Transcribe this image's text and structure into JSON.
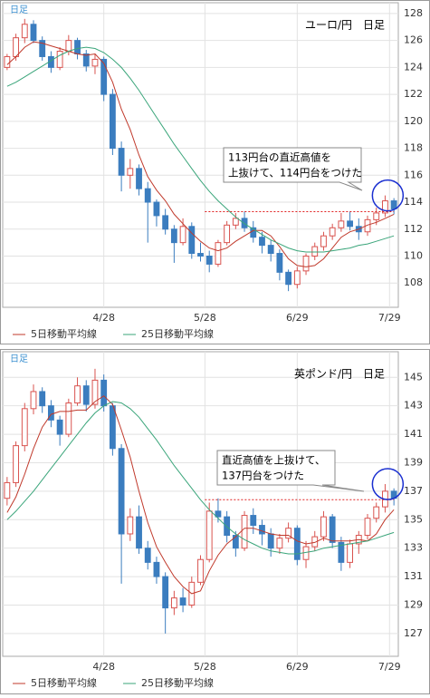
{
  "chart_data": [
    {
      "type": "candlestick",
      "badge": "日足",
      "title": "ユーロ/円　日足",
      "annotation": [
        "113円台の直近高値を",
        "上抜けて、114円台をつけた"
      ],
      "resistance": 113.3,
      "open": [
        124,
        124.8,
        126.2,
        127.2,
        126,
        124.8,
        124,
        125.2,
        126,
        125,
        124.1,
        124.6,
        122,
        118,
        116,
        116.5,
        115,
        114,
        113,
        112,
        111,
        112.2,
        110.2,
        110,
        109.4,
        111,
        112.3,
        112.8,
        112.1,
        111.4,
        110.8,
        110.2,
        108.8,
        107.9,
        108.9,
        110,
        110.7,
        111.5,
        112.1,
        112.6,
        112.2,
        111.8,
        112.7,
        113.2,
        114.1
      ],
      "high": [
        125,
        126.5,
        127.6,
        127.5,
        126.3,
        125.2,
        125.5,
        126.4,
        126.2,
        125.3,
        125,
        124.8,
        122.4,
        118.5,
        117.2,
        116.8,
        115.5,
        114.2,
        113.5,
        112.3,
        112.8,
        112.5,
        111,
        110.4,
        111.2,
        112.6,
        113.2,
        113.3,
        112.6,
        111.8,
        111.2,
        110.5,
        109,
        109.2,
        110.2,
        111,
        111.8,
        112.4,
        113.2,
        113.3,
        112.8,
        113,
        113.6,
        114.5,
        114.3
      ],
      "low": [
        123.8,
        124.5,
        125.8,
        125.8,
        124.5,
        123.6,
        123.8,
        124.9,
        124.6,
        123.7,
        123.5,
        121.5,
        117.5,
        114.8,
        115,
        114.5,
        111,
        112.2,
        111.6,
        109.5,
        110.8,
        109.8,
        109.6,
        108.8,
        109.2,
        110.8,
        112,
        111.8,
        111,
        110.2,
        109.6,
        108.2,
        107.4,
        107.6,
        108.6,
        109.7,
        110.4,
        111.2,
        111.8,
        111.9,
        111.2,
        111.5,
        112.3,
        112.9,
        113.1
      ],
      "close": [
        124.8,
        126.2,
        127.2,
        126,
        124.8,
        124,
        125.2,
        126,
        125,
        124.1,
        124.6,
        122,
        118,
        116,
        116.5,
        115,
        114,
        113,
        112,
        111,
        112.2,
        110.2,
        110,
        109.4,
        111,
        112.3,
        112.8,
        112.1,
        111.4,
        110.8,
        110.2,
        108.8,
        107.9,
        108.9,
        110,
        110.7,
        111.5,
        112.1,
        112.6,
        112.2,
        111.8,
        112.7,
        113.2,
        114.1,
        113.5
      ],
      "up_color": "#d9534f",
      "down_color": "#3b7dbf",
      "series": [
        {
          "name": "5日移動平均線",
          "color": "#c0392b",
          "values": [
            124.2,
            124.8,
            125.5,
            125.9,
            125.8,
            125.6,
            125.4,
            125.2,
            125,
            124.9,
            125,
            124.3,
            122.9,
            120.9,
            119.4,
            117.5,
            115.9,
            114.9,
            114.1,
            113.1,
            112.4,
            111.7,
            111.1,
            110.6,
            110.4,
            110.6,
            111.1,
            111.5,
            111.9,
            111.9,
            111.5,
            110.7,
            109.8,
            109.3,
            109.2,
            109.3,
            109.8,
            110.6,
            111.4,
            111.8,
            112,
            112.3,
            112.5,
            112.8,
            113.1
          ]
        },
        {
          "name": "25日移動平均線",
          "color": "#3aa57a",
          "values": [
            122.6,
            122.9,
            123.3,
            123.7,
            124.1,
            124.5,
            124.9,
            125.2,
            125.4,
            125.5,
            125.4,
            125.1,
            124.6,
            124,
            123.2,
            122.3,
            121.3,
            120.3,
            119.3,
            118.3,
            117.4,
            116.5,
            115.6,
            114.8,
            114.1,
            113.5,
            112.9,
            112.4,
            112,
            111.6,
            111.2,
            110.9,
            110.6,
            110.4,
            110.3,
            110.3,
            110.3,
            110.4,
            110.5,
            110.6,
            110.8,
            110.9,
            111.1,
            111.3,
            111.5
          ]
        }
      ],
      "xlim": [
        -0.5,
        44.5
      ],
      "xticks": [
        {
          "value": 11,
          "label": "4/28"
        },
        {
          "value": 22.5,
          "label": "5/28"
        },
        {
          "value": 33,
          "label": "6/29"
        },
        {
          "value": 43.5,
          "label": "7/29"
        }
      ],
      "ylim": [
        106.2,
        128.8
      ],
      "yticks": [
        108,
        110,
        112,
        114,
        116,
        118,
        120,
        122,
        124,
        126,
        128
      ],
      "grid": true
    },
    {
      "type": "candlestick",
      "badge": "日足",
      "title": "英ポンド/円　日足",
      "annotation": [
        "直近高値を上抜けて、",
        "137円台をつけた"
      ],
      "resistance": 136.4,
      "open": [
        136.5,
        137.6,
        140.2,
        142.8,
        144,
        143,
        142,
        141,
        143.2,
        144.4,
        143.1,
        144.8,
        143,
        140,
        134,
        135.2,
        133,
        132,
        131,
        128.8,
        129.5,
        129,
        130.6,
        132.2,
        135.6,
        135.2,
        133.9,
        133,
        135.3,
        134.6,
        134,
        133,
        133.7,
        134.4,
        132.2,
        133.1,
        133.8,
        135.2,
        133.4,
        132,
        133.3,
        133.9,
        135.1,
        135.9,
        137
      ],
      "high": [
        138,
        140.5,
        143.2,
        144.5,
        144.3,
        143.4,
        142.3,
        143.5,
        145,
        144.8,
        145.6,
        145.2,
        143.2,
        140.3,
        135.8,
        136,
        133.5,
        132.4,
        131.3,
        130,
        130.2,
        131,
        132.5,
        136.2,
        136.5,
        135.6,
        134.2,
        135.6,
        135.8,
        135,
        134.4,
        134,
        134.8,
        134.6,
        133.5,
        134.2,
        135.6,
        135.4,
        133.8,
        133.6,
        134.2,
        135.4,
        136.2,
        137.5,
        137.2
      ],
      "low": [
        136,
        137.3,
        139.8,
        142.4,
        142.5,
        141.5,
        140.2,
        140.8,
        143,
        142.6,
        142.8,
        142.6,
        139.5,
        130.5,
        133.5,
        132.6,
        131.5,
        130.5,
        127,
        128.3,
        128.5,
        128.8,
        130.4,
        132,
        134.8,
        133.4,
        132.4,
        132.8,
        134,
        133.2,
        132.4,
        132.6,
        133.4,
        131.8,
        131.6,
        132.8,
        133.5,
        133,
        131.4,
        131.6,
        132.6,
        133.6,
        134.8,
        135.5,
        136
      ],
      "close": [
        137.6,
        140.2,
        142.8,
        144,
        143,
        142,
        141,
        143.2,
        144.4,
        143.1,
        144.8,
        143,
        140,
        134,
        135.2,
        133,
        132,
        131,
        128.8,
        129.5,
        129,
        130.6,
        132.2,
        135.6,
        135.2,
        133.9,
        133,
        135.3,
        134.6,
        134,
        133,
        133.7,
        134.4,
        132.2,
        133.1,
        133.8,
        135.2,
        133.4,
        132,
        133.3,
        133.9,
        135.1,
        135.9,
        137,
        136.5
      ],
      "up_color": "#d9534f",
      "down_color": "#3b7dbf",
      "series": [
        {
          "name": "5日移動平均線",
          "color": "#c0392b",
          "values": [
            135.5,
            136.6,
            138.2,
            140,
            141.5,
            142.4,
            142.6,
            142.6,
            142.7,
            142.7,
            143.3,
            143.7,
            143.1,
            141.3,
            139.4,
            137,
            134.8,
            133.1,
            132,
            131,
            130.3,
            129.8,
            130,
            131.4,
            132.5,
            133.3,
            133.8,
            134.4,
            134.4,
            134.2,
            134,
            133.9,
            133.9,
            133.5,
            133.3,
            133.4,
            133.7,
            133.5,
            133.5,
            133.5,
            133.6,
            133.5,
            134,
            135,
            135.7
          ]
        },
        {
          "name": "25日移動平均線",
          "color": "#3aa57a",
          "values": [
            135,
            135.6,
            136.3,
            137,
            137.8,
            138.6,
            139.4,
            140.2,
            141,
            141.8,
            142.5,
            143,
            143.3,
            143.2,
            142.8,
            142.2,
            141.4,
            140.6,
            139.7,
            138.8,
            138,
            137.2,
            136.4,
            135.7,
            135.1,
            134.5,
            134,
            133.6,
            133.3,
            133,
            132.8,
            132.7,
            132.6,
            132.6,
            132.7,
            132.8,
            133,
            133.1,
            133.2,
            133.3,
            133.4,
            133.5,
            133.7,
            133.9,
            134.1
          ]
        }
      ],
      "xlim": [
        -0.5,
        44.5
      ],
      "xticks": [
        {
          "value": 11,
          "label": "4/28"
        },
        {
          "value": 22.5,
          "label": "5/28"
        },
        {
          "value": 33,
          "label": "6/29"
        },
        {
          "value": 43.5,
          "label": "7/29"
        }
      ],
      "ylim": [
        125.4,
        146.8
      ],
      "yticks": [
        127,
        129,
        131,
        133,
        135,
        137,
        139,
        141,
        143,
        145
      ],
      "grid": true
    }
  ]
}
